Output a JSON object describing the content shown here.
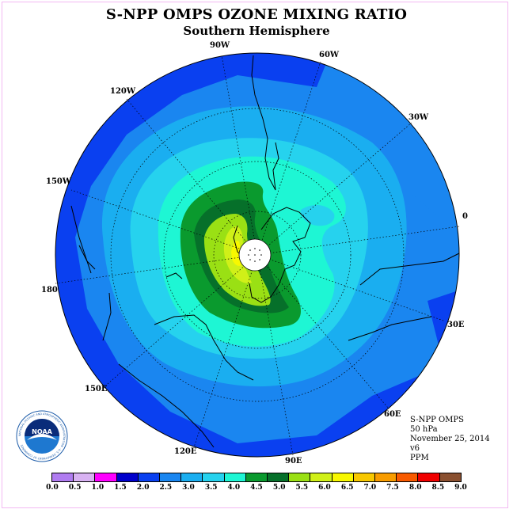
{
  "header": {
    "title": "S-NPP OMPS OZONE MIXING RATIO",
    "subtitle": "Southern Hemisphere"
  },
  "map": {
    "projection": "south-polar-stereographic",
    "longitude_labels": [
      "90W",
      "60W",
      "30W",
      "0",
      "30E",
      "60E",
      "90E",
      "120E",
      "150E",
      "180",
      "150W",
      "120W"
    ],
    "pole_mask": "white circle at pole"
  },
  "info": {
    "instrument": "S-NPP OMPS",
    "level": "50 hPa",
    "date": "November 25, 2014",
    "version": "v6",
    "units": "PPM"
  },
  "colorbar": {
    "tick_labels": [
      "0.0",
      "0.5",
      "1.0",
      "1.5",
      "2.0",
      "2.5",
      "3.0",
      "3.5",
      "4.0",
      "4.5",
      "5.0",
      "5.5",
      "6.0",
      "6.5",
      "7.0",
      "7.5",
      "8.0",
      "8.5",
      "9.0"
    ],
    "colors": [
      "#b07cf0",
      "#d8b2f2",
      "#ff00ff",
      "#0000cc",
      "#0a40f0",
      "#1a86f0",
      "#1aaef0",
      "#26d2ee",
      "#1ef6d4",
      "#0a9a2e",
      "#06702a",
      "#9ae014",
      "#d0f018",
      "#f8f800",
      "#f8c800",
      "#f89c00",
      "#f85a00",
      "#f00000",
      "#8a5030"
    ]
  },
  "logo": {
    "text": "NOAA",
    "ring_text": "NATIONAL OCEANIC AND ATMOSPHERIC ADMINISTRATION · U.S. DEPARTMENT OF COMMERCE"
  }
}
